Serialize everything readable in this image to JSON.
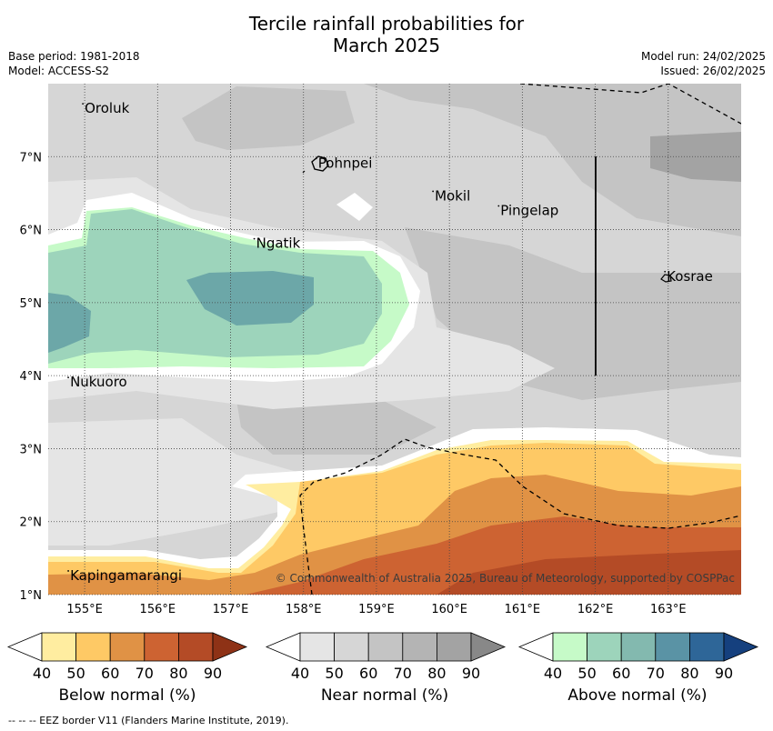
{
  "title_line1": "Tercile rainfall probabilities for",
  "title_line2": "March 2025",
  "base_period": "Base period: 1981-2018",
  "model": "Model: ACCESS-S2",
  "model_run": "Model run: 24/02/2025",
  "issued": "Issued: 26/02/2025",
  "copyright": "© Commonwealth of Australia 2025, Bureau of Meteorology, supported by COSPPac",
  "footer": "--  --  -- EEZ border V11 (Flanders Marine Institute, 2019).",
  "map": {
    "lon_ticks": [
      "155°E",
      "156°E",
      "157°E",
      "158°E",
      "159°E",
      "160°E",
      "161°E",
      "162°E",
      "163°E"
    ],
    "lat_ticks": [
      "7°N",
      "6°N",
      "5°N",
      "4°N",
      "3°N",
      "2°N",
      "1°N"
    ],
    "places": [
      {
        "name": "Oroluk",
        "lon": 155.0,
        "lat": 7.6
      },
      {
        "name": "Pohnpei",
        "lon": 158.2,
        "lat": 6.85
      },
      {
        "name": "Mokil",
        "lon": 159.8,
        "lat": 6.4
      },
      {
        "name": "Pingelap",
        "lon": 160.7,
        "lat": 6.2
      },
      {
        "name": "Ngatik",
        "lon": 157.35,
        "lat": 5.75
      },
      {
        "name": "Kosrae",
        "lon": 162.98,
        "lat": 5.3
      },
      {
        "name": "Nukuoro",
        "lon": 154.8,
        "lat": 3.85
      },
      {
        "name": "Kapingamarangi",
        "lon": 154.8,
        "lat": 1.2
      }
    ]
  },
  "legend": {
    "below": {
      "label": "Below normal (%)",
      "ticks": [
        "40",
        "50",
        "60",
        "70",
        "80",
        "90"
      ],
      "colors": [
        "#fff",
        "#ffeda0",
        "#fec965",
        "#e09245",
        "#cd6332",
        "#b44b26",
        "#8e3216"
      ]
    },
    "near": {
      "label": "Near normal (%)",
      "ticks": [
        "40",
        "50",
        "60",
        "70",
        "80",
        "90"
      ],
      "colors": [
        "#fff",
        "#e5e5e5",
        "#d6d6d6",
        "#c4c4c4",
        "#b4b4b4",
        "#a3a3a3",
        "#888888"
      ]
    },
    "above": {
      "label": "Above normal (%)",
      "ticks": [
        "40",
        "50",
        "60",
        "70",
        "80",
        "90"
      ],
      "colors": [
        "#fff",
        "#c6fac8",
        "#9dd4bb",
        "#83b9af",
        "#5a93a5",
        "#2e6698",
        "#15407e"
      ]
    }
  }
}
